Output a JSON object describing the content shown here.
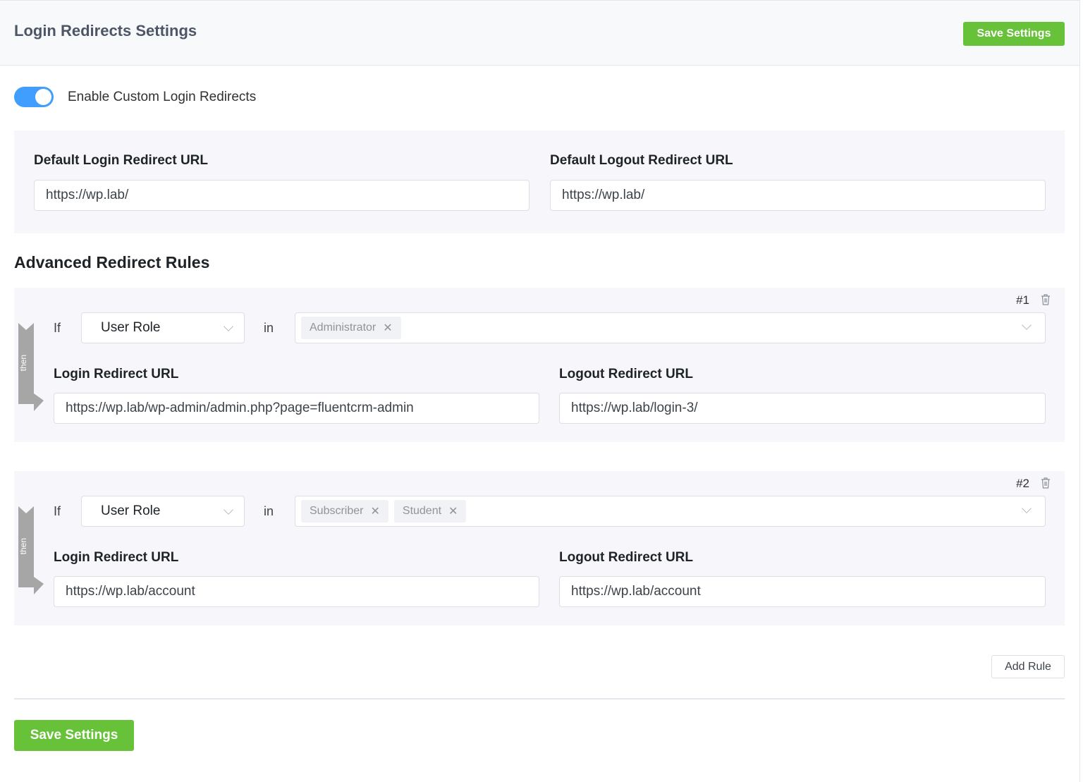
{
  "header": {
    "title": "Login Redirects Settings",
    "save_label": "Save Settings"
  },
  "toggle": {
    "label": "Enable Custom Login Redirects",
    "enabled": true
  },
  "defaults": {
    "login_label": "Default Login Redirect URL",
    "login_value": "https://wp.lab/",
    "logout_label": "Default Logout Redirect URL",
    "logout_value": "https://wp.lab/"
  },
  "advanced": {
    "title": "Advanced Redirect Rules"
  },
  "rules": [
    {
      "number": "#1",
      "if_label": "If",
      "field": "User Role",
      "in_label": "in",
      "then_label": "then",
      "tags": [
        "Administrator"
      ],
      "login_label": "Login Redirect URL",
      "login_value": "https://wp.lab/wp-admin/admin.php?page=fluentcrm-admin",
      "logout_label": "Logout Redirect URL",
      "logout_value": "https://wp.lab/login-3/"
    },
    {
      "number": "#2",
      "if_label": "If",
      "field": "User Role",
      "in_label": "in",
      "then_label": "then",
      "tags": [
        "Subscriber",
        "Student"
      ],
      "login_label": "Login Redirect URL",
      "login_value": "https://wp.lab/account",
      "logout_label": "Logout Redirect URL",
      "logout_value": "https://wp.lab/account"
    }
  ],
  "footer": {
    "add_rule_label": "Add Rule",
    "save_label": "Save Settings"
  },
  "colors": {
    "accent": "#409eff",
    "save": "#67c23a"
  }
}
